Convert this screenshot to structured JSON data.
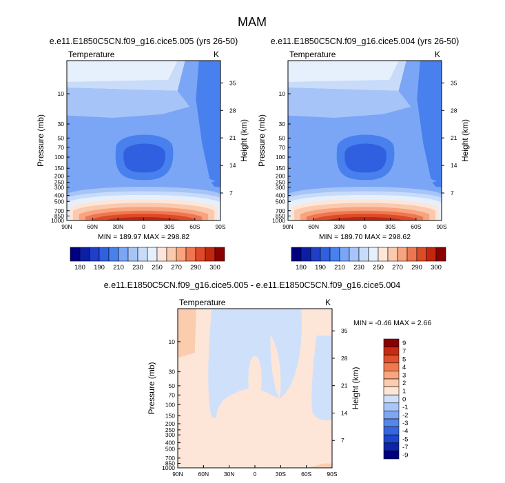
{
  "figure": {
    "title": "MAM",
    "colors": {
      "abs": [
        "#00007f",
        "#0c1fa4",
        "#1f3fc9",
        "#3060e0",
        "#4880ee",
        "#7aa6f5",
        "#a6c4f8",
        "#c8dcfa",
        "#e6f0fd",
        "#fde6d8",
        "#fbc9ae",
        "#f7a47f",
        "#ee7650",
        "#de4a28",
        "#c2260e",
        "#8b0000"
      ],
      "diff": [
        "#00007f",
        "#0c24a6",
        "#1e46cb",
        "#3566df",
        "#5586ea",
        "#7fa6f2",
        "#a8c6f7",
        "#cfe0fb",
        "#fde6d8",
        "#fbccae",
        "#f7a680",
        "#ef7a52",
        "#e0522d",
        "#c52c12",
        "#8b0000"
      ],
      "line": "#000000"
    }
  },
  "chart_data": [
    {
      "type": "heatmap",
      "title": "e.e11.E1850C5CN.f09_g16.cice5.005 (yrs 26-50)",
      "variable": "Temperature",
      "units": "K",
      "xlabel": "",
      "ylabel": "Pressure (mb)",
      "y2label": "Height (km)",
      "x_ticks": [
        "90N",
        "60N",
        "30N",
        "0",
        "30S",
        "60S",
        "90S"
      ],
      "y_ticks": [
        "10",
        "30",
        "50",
        "70",
        "100",
        "150",
        "200",
        "250",
        "300",
        "400",
        "500",
        "700",
        "850",
        "1000"
      ],
      "y2_ticks": [
        "35",
        "28",
        "21",
        "14",
        "7"
      ],
      "ylim_mb": [
        3,
        1000
      ],
      "stats": "MIN = 189.97   MAX = 298.82",
      "colorbar_levels": [
        180,
        185,
        190,
        200,
        210,
        220,
        230,
        240,
        250,
        260,
        270,
        280,
        290,
        295,
        300
      ],
      "colorbar_labels": [
        "180",
        "190",
        "210",
        "230",
        "250",
        "270",
        "290",
        "300"
      ],
      "value_at_equator_100mb": 189.97,
      "value_at_equator_1000mb": 298.82
    },
    {
      "type": "heatmap",
      "title": "e.e11.E1850C5CN.f09_g16.cice5.004 (yrs 26-50)",
      "variable": "Temperature",
      "units": "K",
      "xlabel": "",
      "ylabel": "Pressure (mb)",
      "y2label": "Height (km)",
      "x_ticks": [
        "90N",
        "60N",
        "30N",
        "0",
        "30S",
        "60S",
        "90S"
      ],
      "y_ticks": [
        "10",
        "30",
        "50",
        "70",
        "100",
        "150",
        "200",
        "250",
        "300",
        "400",
        "500",
        "700",
        "850",
        "1000"
      ],
      "y2_ticks": [
        "35",
        "28",
        "21",
        "14",
        "7"
      ],
      "ylim_mb": [
        3,
        1000
      ],
      "stats": "MIN = 189.70   MAX = 298.62",
      "colorbar_levels": [
        180,
        185,
        190,
        200,
        210,
        220,
        230,
        240,
        250,
        260,
        270,
        280,
        290,
        295,
        300
      ],
      "colorbar_labels": [
        "180",
        "190",
        "210",
        "230",
        "250",
        "270",
        "290",
        "300"
      ],
      "value_at_equator_100mb": 189.7,
      "value_at_equator_1000mb": 298.62
    },
    {
      "type": "heatmap",
      "title": "e.e11.E1850C5CN.f09_g16.cice5.005 - e.e11.E1850C5CN.f09_g16.cice5.004",
      "variable": "Temperature",
      "units": "K",
      "xlabel": "",
      "ylabel": "Pressure (mb)",
      "y2label": "Height (km)",
      "x_ticks": [
        "90N",
        "60N",
        "30N",
        "0",
        "30S",
        "60S",
        "90S"
      ],
      "y_ticks": [
        "10",
        "30",
        "50",
        "70",
        "100",
        "150",
        "200",
        "250",
        "300",
        "400",
        "500",
        "700",
        "850",
        "1000"
      ],
      "y2_ticks": [
        "35",
        "28",
        "21",
        "14",
        "7"
      ],
      "ylim_mb": [
        3,
        1000
      ],
      "stats": "MIN = -0.46   MAX =  2.66",
      "colorbar_levels": [
        -9,
        -7,
        -5,
        -4,
        -3,
        -2,
        -1,
        0,
        1,
        2,
        3,
        4,
        5,
        7,
        9
      ],
      "colorbar_labels": [
        "9",
        "7",
        "5",
        "4",
        "3",
        "2",
        "1",
        "0",
        "-1",
        "-2",
        "-3",
        "-4",
        "-5",
        "-7",
        "-9"
      ],
      "dominant_range": [
        0,
        1
      ],
      "secondary_range": [
        -1,
        0
      ]
    }
  ]
}
